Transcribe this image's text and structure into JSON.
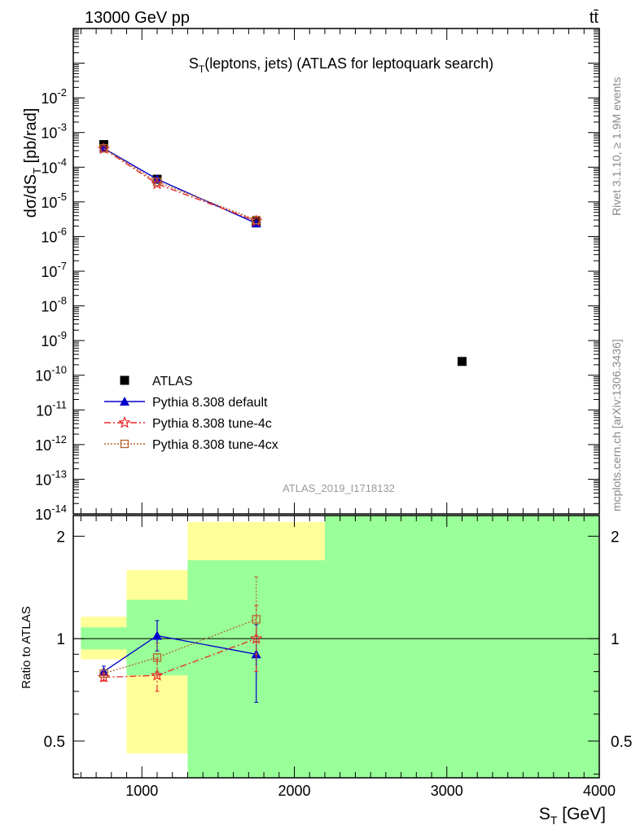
{
  "header": {
    "left": "13000 GeV pp",
    "right": "tt̄"
  },
  "side_text": {
    "rivet": "Rivet 3.1.10, ≥ 1.9M events",
    "mcplots": "mcplots.cern.ch [arXiv:1306.3436]"
  },
  "main_plot": {
    "title": "S_T(leptons, jets) (ATLAS for leptoquark search)",
    "watermark": "ATLAS_2019_I1718132",
    "ylabel": "dσ/dS_T [pb/rad]"
  },
  "ratio_plot": {
    "ylabel": "Ratio to ATLAS",
    "xlabel": "S_T [GeV]"
  },
  "legend": [
    {
      "key": "atlas",
      "label": "ATLAS"
    },
    {
      "key": "default",
      "label": "Pythia 8.308 default"
    },
    {
      "key": "tune4c",
      "label": "Pythia 8.308 tune-4c"
    },
    {
      "key": "tune4cx",
      "label": "Pythia 8.308 tune-4cx"
    }
  ],
  "colors": {
    "atlas": "#000000",
    "default": "#0000cc",
    "tune4c": "#e8262a",
    "tune4cx": "#b5642a",
    "band_inner": "#99ff99",
    "band_outer": "#ffff99"
  },
  "chart_data": [
    {
      "type": "scatter",
      "panel": "main",
      "yscale": "log",
      "xlim": [
        550,
        4000
      ],
      "ylim": [
        1e-14,
        1
      ],
      "series": [
        {
          "name": "ATLAS",
          "marker": "square",
          "x": [
            750,
            1100,
            1750,
            3100
          ],
          "y": [
            0.00045,
            4.5e-05,
            2.7e-06,
            2.5e-10
          ]
        },
        {
          "name": "Pythia 8.308 default",
          "marker": "triangle",
          "line": "solid",
          "x": [
            750,
            1100,
            1750
          ],
          "y": [
            0.00035,
            4.5e-05,
            2.4e-06
          ]
        },
        {
          "name": "Pythia 8.308 tune-4c",
          "marker": "star",
          "line": "dashdot",
          "x": [
            750,
            1100,
            1750
          ],
          "y": [
            0.00034,
            3.3e-05,
            2.8e-06
          ]
        },
        {
          "name": "Pythia 8.308 tune-4cx",
          "marker": "open-square",
          "line": "dotted",
          "x": [
            750,
            1100,
            1750
          ],
          "y": [
            0.00035,
            3.8e-05,
            3e-06
          ]
        }
      ]
    },
    {
      "type": "scatter",
      "panel": "ratio",
      "yscale": "log",
      "xlim": [
        550,
        4000
      ],
      "ylim": [
        0.39,
        2.3
      ],
      "xticks": [
        1000,
        2000,
        3000,
        4000
      ],
      "yticks": [
        0.5,
        1,
        2
      ],
      "bands": [
        {
          "x0": 600,
          "x1": 900,
          "outer": [
            0.87,
            1.16
          ],
          "inner": [
            0.93,
            1.08
          ]
        },
        {
          "x0": 900,
          "x1": 1300,
          "outer": [
            0.46,
            1.59
          ],
          "inner": [
            0.78,
            1.3
          ]
        },
        {
          "x0": 1300,
          "x1": 2200,
          "outer": [
            0.3,
            2.2
          ],
          "inner": [
            0.3,
            1.7
          ]
        },
        {
          "x0": 2200,
          "x1": 4000,
          "outer": [
            0.3,
            2.4
          ],
          "inner": [
            0.3,
            2.4
          ]
        }
      ],
      "series": [
        {
          "name": "Pythia 8.308 default",
          "marker": "triangle",
          "line": "solid",
          "x": [
            750,
            1100,
            1750
          ],
          "y": [
            0.8,
            1.02,
            0.9
          ],
          "err": [
            [
              0.78,
              0.83
            ],
            [
              0.92,
              1.13
            ],
            [
              0.65,
              1.1
            ]
          ]
        },
        {
          "name": "Pythia 8.308 tune-4c",
          "marker": "star",
          "line": "dashdot",
          "x": [
            750,
            1100,
            1750
          ],
          "y": [
            0.77,
            0.78,
            1.0
          ],
          "err": [
            [
              0.75,
              0.79
            ],
            [
              0.7,
              0.87
            ],
            [
              0.8,
              1.25
            ]
          ]
        },
        {
          "name": "Pythia 8.308 tune-4cx",
          "marker": "open-square",
          "line": "dotted",
          "x": [
            750,
            1100,
            1750
          ],
          "y": [
            0.79,
            0.88,
            1.14
          ],
          "err": [
            [
              0.77,
              0.81
            ],
            [
              0.8,
              0.97
            ],
            [
              0.9,
              1.52
            ]
          ]
        }
      ]
    }
  ]
}
